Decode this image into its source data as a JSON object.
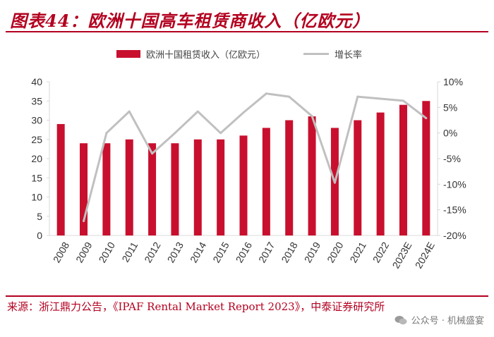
{
  "title": "图表44：欧洲十国高车租赁商收入（亿欧元）",
  "legend": {
    "bar_label": "欧洲十国租赁收入（亿欧元）",
    "line_label": "增长率"
  },
  "colors": {
    "bar": "#c8102e",
    "line": "#c0c0c0",
    "accent": "#b3001f",
    "axis": "#d8d8d8",
    "text": "#333333"
  },
  "source": "来源：浙江鼎力公告，《IPAF Rental Market Report 2023》，中泰证券研究所",
  "watermark": "公众号 · 机械盛宴",
  "chart_data": {
    "type": "bar",
    "categories": [
      "2008",
      "2009",
      "2010",
      "2011",
      "2012",
      "2013",
      "2014",
      "2015",
      "2016",
      "2017",
      "2018",
      "2019",
      "2020",
      "2021",
      "2022",
      "2023E",
      "2024E"
    ],
    "series": [
      {
        "name": "欧洲十国租赁收入（亿欧元）",
        "type": "bar",
        "axis": "left",
        "values": [
          29,
          24,
          24,
          25,
          24,
          24,
          25,
          25,
          26,
          28,
          30,
          31,
          28,
          30,
          32,
          34,
          35
        ]
      },
      {
        "name": "增长率",
        "type": "line",
        "axis": "right",
        "values": [
          null,
          -17.2,
          0.0,
          4.2,
          -4.0,
          0.0,
          4.2,
          0.0,
          4.0,
          7.7,
          7.1,
          3.3,
          -9.7,
          7.1,
          6.7,
          6.3,
          2.9
        ]
      }
    ],
    "left_axis": {
      "ylim": [
        0,
        40
      ],
      "ticks": [
        "0",
        "5",
        "10",
        "15",
        "20",
        "25",
        "30",
        "35",
        "40"
      ]
    },
    "right_axis": {
      "ylim": [
        -20,
        10
      ],
      "ticks": [
        "-20%",
        "-15%",
        "-10%",
        "-5%",
        "0%",
        "5%",
        "10%"
      ]
    },
    "grid": false,
    "legend_position": "top"
  }
}
